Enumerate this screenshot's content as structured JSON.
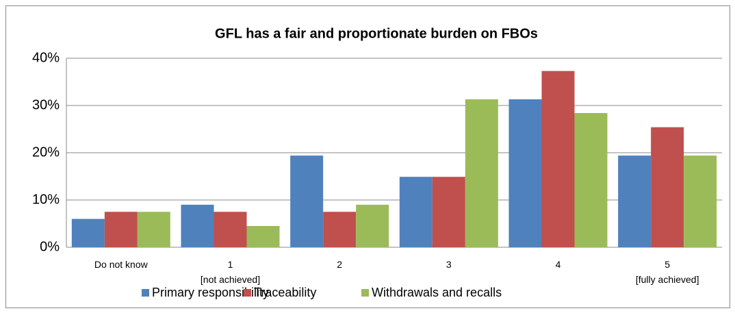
{
  "chart_data": {
    "type": "bar",
    "title": "GFL has a fair and proportionate burden on FBOs",
    "categories": [
      "Do not know",
      "1\n[not achieved]",
      "2",
      "3",
      "4",
      "5\n[fully achieved]"
    ],
    "series": [
      {
        "name": "Primary responsibility",
        "color": "#4f81bd",
        "values": [
          6.0,
          9.0,
          19.4,
          14.9,
          31.3,
          19.4
        ]
      },
      {
        "name": "Traceability",
        "color": "#c0504d",
        "values": [
          7.5,
          7.5,
          7.5,
          14.9,
          37.3,
          25.4
        ]
      },
      {
        "name": "Withdrawals and recalls",
        "color": "#9bbb59",
        "values": [
          7.5,
          4.5,
          9.0,
          31.3,
          28.4,
          19.4
        ]
      }
    ],
    "ylim": [
      0,
      40
    ],
    "yticks": [
      {
        "value": 0,
        "label": "0%"
      },
      {
        "value": 10,
        "label": "10%"
      },
      {
        "value": 20,
        "label": "20%"
      },
      {
        "value": 30,
        "label": "30%"
      },
      {
        "value": 40,
        "label": "40%"
      }
    ],
    "grid": true,
    "legend": "bottom"
  }
}
